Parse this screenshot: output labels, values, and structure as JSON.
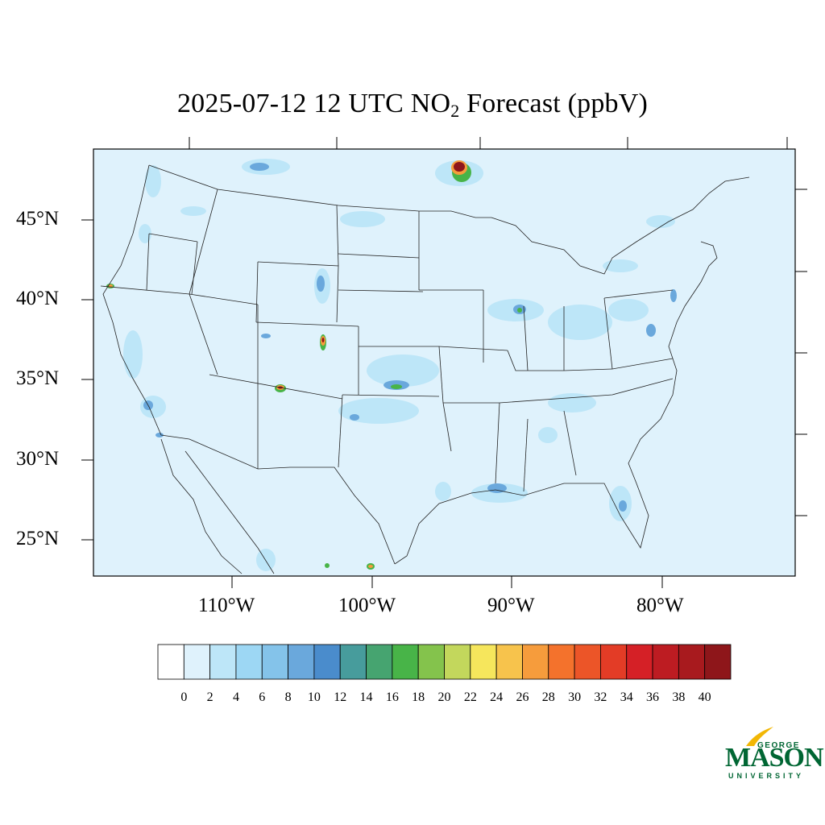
{
  "title": {
    "main": "2025-07-12 12 UTC NO",
    "subscript": "2",
    "suffix": " Forecast (ppbV)"
  },
  "lat_labels": [
    "45°N",
    "40°N",
    "35°N",
    "30°N",
    "25°N"
  ],
  "lon_labels": [
    "110°W",
    "100°W",
    "90°W",
    "80°W"
  ],
  "colorbar": {
    "colors": [
      "#ffffff",
      "#dff2fc",
      "#bde6f8",
      "#9dd7f4",
      "#84c3ea",
      "#6aa8dc",
      "#4a8ccc",
      "#479c9c",
      "#46a470",
      "#48b448",
      "#84c34c",
      "#c3d75c",
      "#f6e65c",
      "#f7c34c",
      "#f69c3c",
      "#f4722c",
      "#ec5528",
      "#e33c26",
      "#d52026",
      "#bd1c22",
      "#a81a1e",
      "#8e161a"
    ],
    "labels": [
      "0",
      "2",
      "4",
      "6",
      "8",
      "10",
      "12",
      "14",
      "16",
      "18",
      "20",
      "22",
      "24",
      "26",
      "28",
      "30",
      "32",
      "34",
      "36",
      "38",
      "40"
    ]
  },
  "map": {
    "background_color": "#dff2fc",
    "hotspots_colors": {
      "light": "#bde6f8",
      "mid": "#9dd7f4",
      "strong": "#6aa8dc",
      "green": "#48b448",
      "yellow": "#f6e65c",
      "orange": "#f69c3c",
      "red": "#d52026",
      "darkred": "#8e161a"
    }
  },
  "logo": {
    "george": "GEORGE",
    "mason": "MASON",
    "university": "UNIVERSITY"
  }
}
